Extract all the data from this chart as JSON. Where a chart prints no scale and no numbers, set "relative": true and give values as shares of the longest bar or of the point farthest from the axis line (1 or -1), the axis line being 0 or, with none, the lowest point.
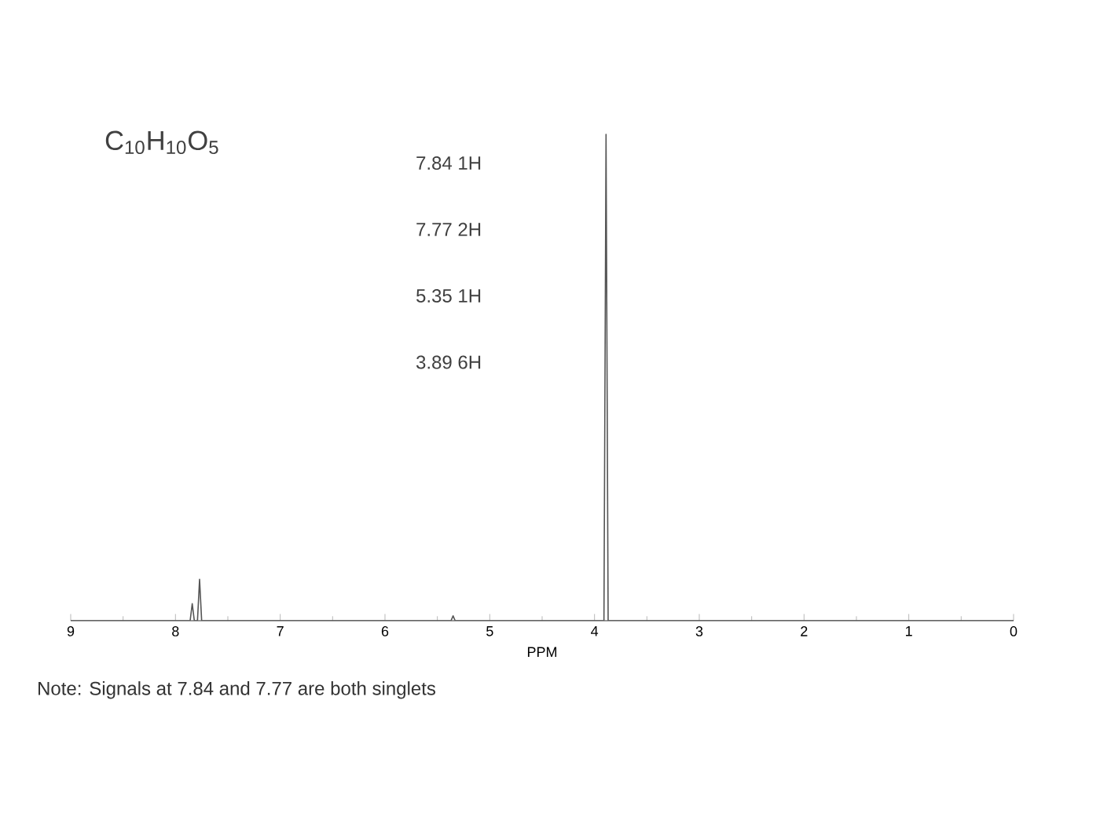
{
  "chart_data": {
    "type": "line",
    "relative": true,
    "xlabel": "PPM",
    "x": [
      9,
      7.86,
      7.84,
      7.82,
      7.79,
      7.77,
      7.75,
      5.37,
      5.35,
      5.33,
      3.91,
      3.89,
      3.87,
      0
    ],
    "series": [
      {
        "color": "#555555",
        "values": [
          0,
          0,
          0.035,
          0,
          0,
          0.085,
          0,
          0,
          0.01,
          0,
          0,
          1,
          0,
          0
        ]
      }
    ],
    "xlim": [
      9,
      0
    ],
    "xticks": [
      9,
      8,
      7,
      6,
      5,
      4,
      3,
      2,
      1,
      0
    ],
    "annotations": [
      "C$_{10}$H$_{10}$O$_{5}$",
      "7.84  1H",
      "7.77  2H",
      "5.35  1H",
      "3.89  6H",
      "Note: Signals at 7.84 and 7.77 are both singlets"
    ],
    "grid": false,
    "marker": "none",
    "line_style": "solid"
  }
}
